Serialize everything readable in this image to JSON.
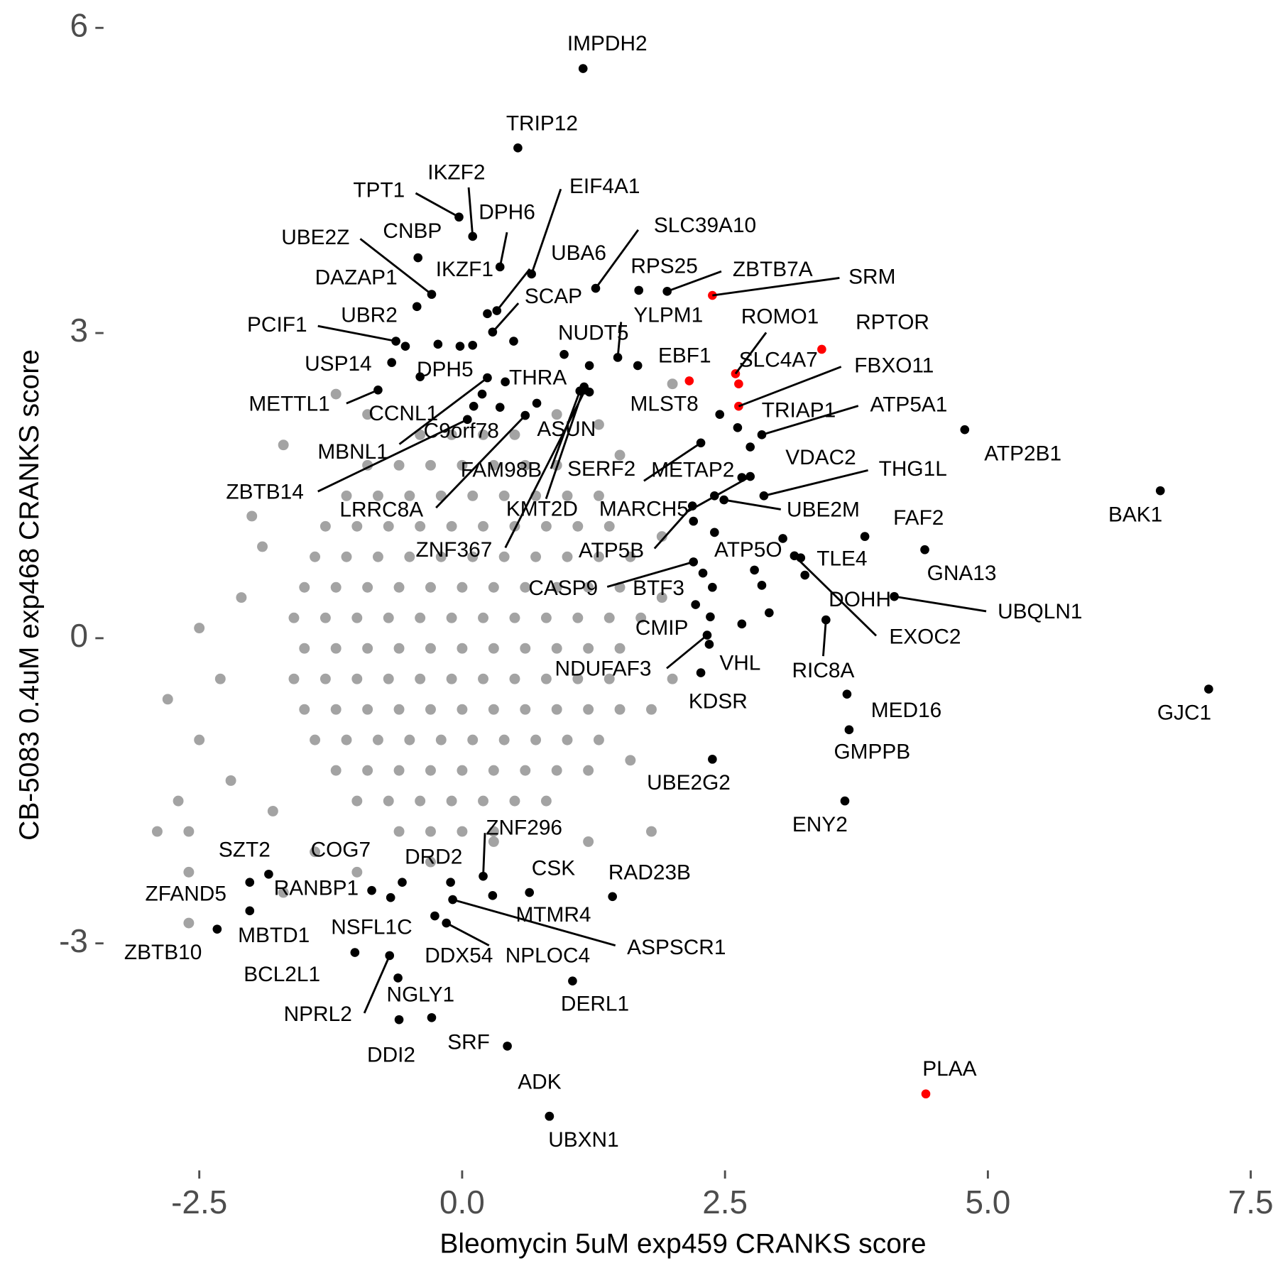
{
  "chart_data": {
    "type": "scatter",
    "x_label": "Bleomycin 5uM exp459 CRANKS score",
    "y_label": "CB-5083 0.4uM exp468 CRANKS score",
    "xlim": [
      -3.4,
      7.75
    ],
    "ylim": [
      -5.2,
      6.27
    ],
    "xticks": [
      -2.5,
      {
        "value": 0,
        "label": "0.0"
      },
      2.5,
      {
        "value": 5,
        "label": "5.0"
      },
      7.5
    ],
    "yticks": [
      -3,
      0,
      3,
      6
    ],
    "grid": false,
    "series": [
      {
        "color": "#a3a3a3",
        "x": [
          -0.4,
          -0.1,
          0.2,
          0.5,
          -0.9,
          -0.6,
          -0.3,
          0,
          0.3,
          0.6,
          0.9,
          -1.1,
          -0.8,
          -0.5,
          -0.2,
          0.1,
          0.4,
          0.7,
          1.0,
          1.3,
          -1.3,
          -1.0,
          -0.7,
          -0.4,
          -0.1,
          0.2,
          0.5,
          0.8,
          1.1,
          1.4,
          -1.4,
          -1.1,
          -0.8,
          -0.5,
          -0.2,
          0.1,
          0.4,
          0.7,
          1.0,
          1.3,
          1.6,
          -1.5,
          -1.2,
          -0.9,
          -0.6,
          -0.3,
          0,
          0.3,
          0.6,
          0.9,
          1.2,
          1.5,
          -1.6,
          -1.3,
          -1.0,
          -0.7,
          -0.4,
          -0.1,
          0.2,
          0.5,
          0.8,
          1.1,
          1.4,
          1.7,
          -1.5,
          -1.2,
          -0.9,
          -0.6,
          -0.3,
          0,
          0.3,
          0.6,
          0.9,
          1.2,
          1.5,
          -1.6,
          -1.3,
          -1.0,
          -0.7,
          -0.4,
          -0.1,
          0.2,
          0.5,
          0.8,
          1.1,
          1.4,
          -1.5,
          -1.2,
          -0.9,
          -0.6,
          -0.3,
          0,
          0.3,
          0.6,
          0.9,
          1.2,
          1.5,
          -1.4,
          -1.1,
          -0.8,
          -0.5,
          -0.2,
          0.1,
          0.4,
          0.7,
          1.0,
          1.3,
          -1.2,
          -0.9,
          -0.6,
          -0.3,
          0,
          0.3,
          0.6,
          0.9,
          1.2,
          -1.0,
          -0.7,
          -0.4,
          -0.1,
          0.2,
          0.5,
          0.8,
          -0.6,
          -0.3,
          0,
          0.3,
          -2.8,
          -2.5,
          -2.7,
          -2.9,
          -2.6,
          -2.6,
          -2.5,
          -2.1,
          -2.3,
          -2.0,
          -1.7,
          -1.9,
          -1.2,
          -0.9,
          -2.2,
          -1.8,
          -1.4,
          -1.7,
          -1.0,
          -0.3,
          0.3,
          1.2,
          1.6,
          1.8,
          2.0,
          1.9,
          1.9,
          1.5,
          1.3,
          2.0,
          0.9,
          1.8,
          -2.6
        ],
        "y": [
          2.0,
          2.0,
          2.0,
          2.0,
          1.7,
          1.7,
          1.7,
          1.7,
          1.7,
          1.7,
          1.7,
          1.4,
          1.4,
          1.4,
          1.4,
          1.4,
          1.4,
          1.4,
          1.4,
          1.4,
          1.1,
          1.1,
          1.1,
          1.1,
          1.1,
          1.1,
          1.1,
          1.1,
          1.1,
          1.1,
          0.8,
          0.8,
          0.8,
          0.8,
          0.8,
          0.8,
          0.8,
          0.8,
          0.8,
          0.8,
          0.8,
          0.5,
          0.5,
          0.5,
          0.5,
          0.5,
          0.5,
          0.5,
          0.5,
          0.5,
          0.5,
          0.5,
          0.2,
          0.2,
          0.2,
          0.2,
          0.2,
          0.2,
          0.2,
          0.2,
          0.2,
          0.2,
          0.2,
          0.2,
          -0.1,
          -0.1,
          -0.1,
          -0.1,
          -0.1,
          -0.1,
          -0.1,
          -0.1,
          -0.1,
          -0.1,
          -0.1,
          -0.4,
          -0.4,
          -0.4,
          -0.4,
          -0.4,
          -0.4,
          -0.4,
          -0.4,
          -0.4,
          -0.4,
          -0.4,
          -0.7,
          -0.7,
          -0.7,
          -0.7,
          -0.7,
          -0.7,
          -0.7,
          -0.7,
          -0.7,
          -0.7,
          -0.7,
          -1.0,
          -1.0,
          -1.0,
          -1.0,
          -1.0,
          -1.0,
          -1.0,
          -1.0,
          -1.0,
          -1.0,
          -1.3,
          -1.3,
          -1.3,
          -1.3,
          -1.3,
          -1.3,
          -1.3,
          -1.3,
          -1.3,
          -1.6,
          -1.6,
          -1.6,
          -1.6,
          -1.6,
          -1.6,
          -1.6,
          -1.9,
          -1.9,
          -1.9,
          -1.9,
          -0.6,
          -1.0,
          -1.6,
          -1.9,
          -2.3,
          -2.8,
          0.1,
          0.4,
          -0.4,
          1.2,
          1.9,
          0.9,
          2.4,
          2.2,
          -1.4,
          -1.7,
          -2.1,
          -2.5,
          -2.3,
          -2.2,
          -2.0,
          -2.0,
          -1.2,
          -0.7,
          -0.4,
          0.4,
          1.0,
          1.8,
          2.1,
          2.5,
          2.2,
          -1.9,
          -1.9
        ]
      },
      {
        "color": "#000000",
        "labels": [
          "IMPDH2",
          "TRIP12",
          "TPT1",
          "IKZF2",
          "DPH6",
          "EIF4A1",
          "CNBP",
          "UBE2Z",
          "SLC39A10",
          "UBA6",
          "DAZAP1",
          "IKZF1",
          "RPS25",
          "ZBTB7A",
          "SCAP",
          "PCIF1",
          "UBR2",
          "YLPM1",
          "NUDT5",
          "USP14",
          "DPH5",
          "THRA",
          "METTL1",
          "CCNL1",
          "MLST8",
          "TRIAP1",
          "ATP5A1",
          "ATP2B1",
          "C9orf78",
          "ASUN",
          "MBNL1",
          "VDAC2",
          "ZBTB14",
          "FAM98B",
          "SERF2",
          "METAP2",
          "THG1L",
          "LRRC8A",
          "KMT2D",
          "MARCH5",
          "UBE2M",
          "ZNF367",
          "FAF2",
          "BAK1",
          "GNA13",
          "ATP5B",
          "ATP5O",
          "TLE4",
          "CASP9",
          "BTF3",
          "DOHH",
          "UBQLN1",
          "EXOC2",
          "CMIP",
          "RIC8A",
          "NDUFAF3",
          "VHL",
          "KDSR",
          "MED16",
          "GJC1",
          "GMPPB",
          "UBE2G2",
          "ENY2",
          "ZNF296",
          "SZT2",
          "COG7",
          "DRD2",
          "CSK",
          "RAD23B",
          "ZFAND5",
          "RANBP1",
          "MTMR4",
          "MBTD1",
          "NSFL1C",
          "ZBTB10",
          "ASPSCR1",
          "DDX54",
          "NPLOC4",
          "DERL1",
          "BCL2L1",
          "NGLY1",
          "NPRL2",
          "DDI2",
          "SRF",
          "ADK",
          "UBXN1",
          null,
          null,
          null,
          null,
          null,
          null,
          null,
          null,
          null,
          null,
          null,
          null,
          null,
          null,
          null,
          null,
          null,
          null
        ],
        "x": [
          1.15,
          0.53,
          -0.03,
          0.1,
          0.36,
          0.66,
          -0.42,
          -0.29,
          1.27,
          0.33,
          -0.43,
          0.24,
          1.68,
          1.95,
          0.29,
          -0.63,
          -0.54,
          1.48,
          1.21,
          -0.67,
          -0.4,
          0.41,
          -0.8,
          0.19,
          2.45,
          2.62,
          2.85,
          4.78,
          0.11,
          0.71,
          0.24,
          2.74,
          0.05,
          1.12,
          1.21,
          2.27,
          2.87,
          0.6,
          1.16,
          2.74,
          2.49,
          1.17,
          3.83,
          6.64,
          4.4,
          2.19,
          3.05,
          3.22,
          2.2,
          2.29,
          3.26,
          4.11,
          3.16,
          2.36,
          3.46,
          2.33,
          2.27,
          2.35,
          3.66,
          7.1,
          3.68,
          2.38,
          3.64,
          0.2,
          -1.84,
          -0.57,
          -0.11,
          0.64,
          1.43,
          -2.02,
          -0.86,
          0.29,
          -2.02,
          -0.68,
          -2.33,
          -0.09,
          -0.15,
          -0.26,
          1.05,
          -1.02,
          -0.29,
          -0.69,
          -0.6,
          0.43,
          0.83,
          0.83,
          -0.23,
          -0.02,
          0.1,
          0.49,
          0.97,
          1.67,
          0.36,
          2.66,
          2.4,
          2.2,
          2.4,
          2.78,
          2.85,
          2.92,
          2.38,
          2.22,
          2.66,
          -0.61
        ],
        "y": [
          5.6,
          4.82,
          4.14,
          3.95,
          3.65,
          3.58,
          3.74,
          3.38,
          3.44,
          3.22,
          3.26,
          3.19,
          3.42,
          3.41,
          3.01,
          2.92,
          2.87,
          2.76,
          2.68,
          2.71,
          2.57,
          2.52,
          2.44,
          2.4,
          2.2,
          2.07,
          2.0,
          2.05,
          2.28,
          2.31,
          2.56,
          1.88,
          2.15,
          2.43,
          2.42,
          1.92,
          1.4,
          2.19,
          2.47,
          1.59,
          1.36,
          2.44,
          1.0,
          1.45,
          0.87,
          1.3,
          0.98,
          0.79,
          0.75,
          0.64,
          0.62,
          0.41,
          0.81,
          0.21,
          0.18,
          0.03,
          -0.34,
          -0.06,
          -0.55,
          -0.5,
          -0.9,
          -1.19,
          -1.6,
          -2.34,
          -2.32,
          -2.4,
          -2.4,
          -2.5,
          -2.54,
          -2.4,
          -2.48,
          -2.53,
          -2.68,
          -2.55,
          -2.86,
          -2.57,
          -2.8,
          -2.73,
          -3.37,
          -3.09,
          -3.73,
          -3.12,
          -3.75,
          -4.01,
          -4.7,
          -4.7,
          2.89,
          2.87,
          2.88,
          2.92,
          2.79,
          2.68,
          2.27,
          1.58,
          1.4,
          1.15,
          1.04,
          0.67,
          0.52,
          0.25,
          0.5,
          0.33,
          0.14,
          -3.34
        ]
      },
      {
        "color": "#ff0000",
        "labels": [
          "SRM",
          "RPTOR",
          "ROMO1",
          "SLC4A7",
          "FBXO11",
          "EBF1",
          "PLAA"
        ],
        "x": [
          2.38,
          3.42,
          2.6,
          2.63,
          2.63,
          2.16,
          4.41
        ],
        "y": [
          3.37,
          2.84,
          2.6,
          2.5,
          2.28,
          2.53,
          -4.48
        ]
      }
    ]
  }
}
